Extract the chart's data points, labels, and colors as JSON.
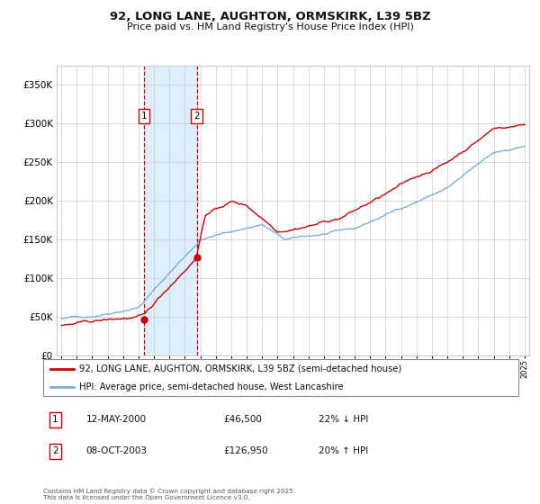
{
  "title": "92, LONG LANE, AUGHTON, ORMSKIRK, L39 5BZ",
  "subtitle": "Price paid vs. HM Land Registry's House Price Index (HPI)",
  "legend_line1": "92, LONG LANE, AUGHTON, ORMSKIRK, L39 5BZ (semi-detached house)",
  "legend_line2": "HPI: Average price, semi-detached house, West Lancashire",
  "footer": "Contains HM Land Registry data © Crown copyright and database right 2025.\nThis data is licensed under the Open Government Licence v3.0.",
  "sale1_date": "12-MAY-2000",
  "sale1_price": "£46,500",
  "sale1_hpi": "22% ↓ HPI",
  "sale2_date": "08-OCT-2003",
  "sale2_price": "£126,950",
  "sale2_hpi": "20% ↑ HPI",
  "red_color": "#cc0000",
  "blue_color": "#7aafd4",
  "shade_color": "#ddeeff",
  "grid_color": "#cccccc",
  "ylim": [
    0,
    375000
  ],
  "yticks": [
    0,
    50000,
    100000,
    150000,
    200000,
    250000,
    300000,
    350000
  ],
  "start_year": 1995,
  "end_year": 2025,
  "sale1_year": 2000.36,
  "sale2_year": 2003.77,
  "sale1_value_red": 46500,
  "sale2_value_red": 126950
}
